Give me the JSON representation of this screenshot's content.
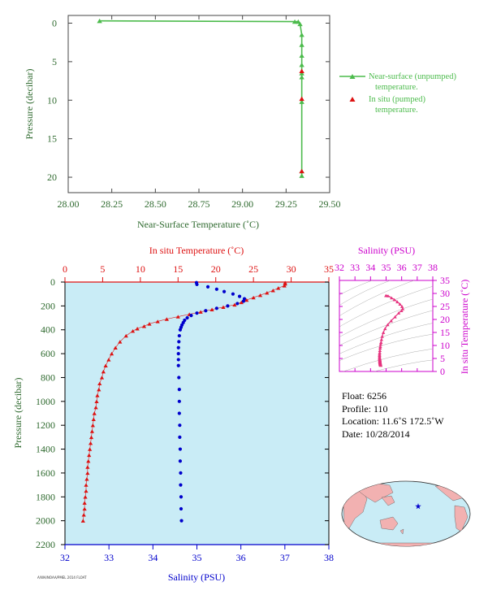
{
  "colors": {
    "green": "#4cbb4c",
    "green_axis": "#2f6a2f",
    "red": "#dd1111",
    "blue": "#0000cc",
    "magenta": "#cc00cc",
    "pink": "#e6347f",
    "panel_bg": "#c9ecf6",
    "land": "#f2b1b1",
    "ocean": "#c9ecf6"
  },
  "chart_data": [
    {
      "id": "near_surface",
      "type": "line",
      "xlabel": "Near-Surface Temperature (˚C)",
      "ylabel": "Pressure (decibar)",
      "xlim": [
        28.0,
        29.5
      ],
      "ylim": [
        22,
        -1
      ],
      "xticks": [
        "28.00",
        "28.25",
        "28.50",
        "28.75",
        "29.00",
        "29.25",
        "29.50"
      ],
      "yticks": [
        "0",
        "5",
        "10",
        "15",
        "20"
      ],
      "legend_position": "right",
      "series": [
        {
          "name": "Near-surface (unpumped) temperature.",
          "marker": "triangle",
          "x": [
            28.18,
            29.3,
            29.32,
            29.33,
            29.34,
            29.34,
            29.34,
            29.34,
            29.34,
            29.34,
            29.34,
            29.34,
            29.34
          ],
          "y": [
            -0.3,
            -0.2,
            -0.2,
            0.1,
            1.5,
            2.8,
            4.2,
            5.4,
            6.5,
            7.0,
            10.2,
            19.2,
            19.8
          ]
        },
        {
          "name": "In situ (pumped) temperature.",
          "marker": "triangle",
          "x": [
            29.34,
            29.34,
            29.34
          ],
          "y": [
            6.2,
            9.8,
            19.2
          ]
        }
      ]
    },
    {
      "id": "profile",
      "type": "scatter",
      "ylabel": "Pressure (decibar)",
      "ylim": [
        2200,
        0
      ],
      "yticks": [
        "0",
        "200",
        "400",
        "600",
        "800",
        "1000",
        "1200",
        "1400",
        "1600",
        "1800",
        "2000",
        "2200"
      ],
      "top_axis": {
        "label": "In situ Temperature (˚C)",
        "range": [
          0,
          35
        ],
        "ticks": [
          "0",
          "5",
          "10",
          "15",
          "20",
          "25",
          "30",
          "35"
        ]
      },
      "bottom_axis": {
        "label": "Salinity (PSU)",
        "range": [
          32,
          38
        ],
        "ticks": [
          "32",
          "33",
          "34",
          "35",
          "36",
          "37",
          "38"
        ]
      },
      "series": [
        {
          "name": "temperature",
          "p": [
            5,
            15,
            30,
            50,
            70,
            90,
            110,
            130,
            150,
            170,
            190,
            210,
            230,
            250,
            270,
            290,
            310,
            330,
            350,
            370,
            390,
            410,
            450,
            500,
            550,
            600,
            650,
            700,
            750,
            800,
            850,
            900,
            950,
            1000,
            1050,
            1100,
            1150,
            1200,
            1250,
            1300,
            1350,
            1400,
            1450,
            1500,
            1550,
            1600,
            1650,
            1700,
            1750,
            1800,
            1850,
            1900,
            1950,
            2000
          ],
          "values": [
            29.2,
            29.2,
            29.1,
            28.3,
            27.6,
            26.8,
            25.9,
            25.0,
            24.1,
            23.4,
            22.5,
            21.0,
            19.5,
            18.0,
            16.5,
            15.0,
            13.5,
            12.3,
            11.2,
            10.5,
            9.6,
            9.0,
            8.1,
            7.3,
            6.7,
            6.2,
            5.8,
            5.4,
            5.1,
            4.9,
            4.6,
            4.5,
            4.3,
            4.2,
            4.1,
            3.9,
            3.8,
            3.7,
            3.6,
            3.5,
            3.4,
            3.3,
            3.2,
            3.1,
            3.0,
            3.0,
            2.9,
            2.8,
            2.8,
            2.7,
            2.6,
            2.6,
            2.5,
            2.4
          ]
        },
        {
          "name": "salinity",
          "p": [
            5,
            20,
            40,
            60,
            80,
            100,
            120,
            140,
            160,
            180,
            200,
            220,
            240,
            260,
            280,
            300,
            320,
            340,
            360,
            380,
            400,
            450,
            500,
            550,
            600,
            650,
            700,
            800,
            900,
            1000,
            1100,
            1200,
            1300,
            1400,
            1500,
            1600,
            1700,
            1800,
            1900,
            2000
          ],
          "values": [
            34.99,
            35.0,
            35.25,
            35.45,
            35.62,
            35.82,
            35.97,
            36.08,
            36.06,
            35.92,
            35.7,
            35.45,
            35.2,
            35.0,
            34.87,
            34.78,
            34.72,
            34.69,
            34.66,
            34.64,
            34.62,
            34.6,
            34.59,
            34.58,
            34.58,
            34.58,
            34.58,
            34.59,
            34.6,
            34.6,
            34.6,
            34.61,
            34.61,
            34.62,
            34.62,
            34.63,
            34.63,
            34.64,
            34.64,
            34.65
          ]
        }
      ]
    },
    {
      "id": "ts_diagram",
      "type": "line",
      "top_axis": {
        "label": "Salinity (PSU)",
        "range": [
          32,
          38
        ],
        "ticks": [
          "32",
          "33",
          "34",
          "35",
          "36",
          "37",
          "38"
        ]
      },
      "right_axis": {
        "label": "In situ Temperature (˚C)",
        "range": [
          0,
          35
        ],
        "ticks": [
          "0",
          "5",
          "10",
          "15",
          "20",
          "25",
          "30",
          "35"
        ]
      }
    }
  ],
  "info": {
    "float": "Float:  6256",
    "profile": "Profile:  110",
    "location": "Location:  11.6˚S  172.5˚W",
    "date": "Date:  10/28/2014"
  },
  "credit": "A/WA/NOAA/PMEL 2014 FLOAT"
}
